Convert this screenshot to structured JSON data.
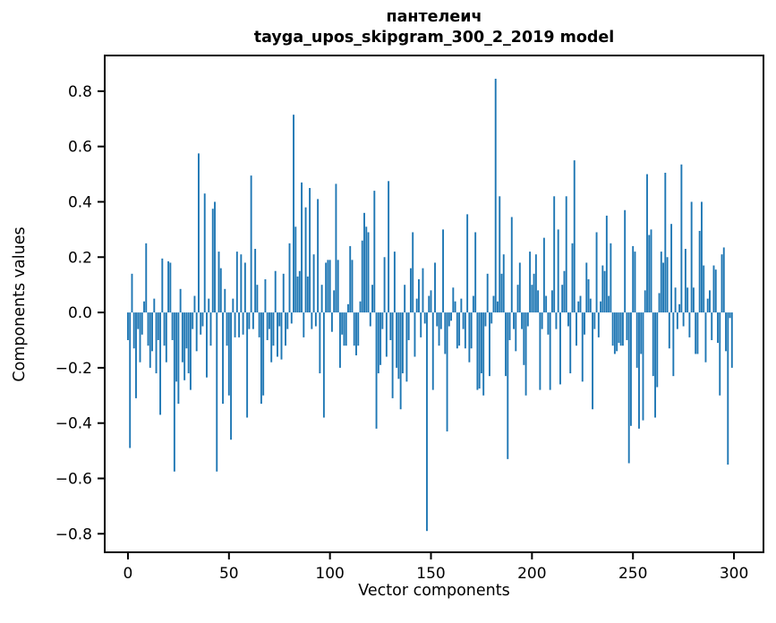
{
  "figure": {
    "title_line1": "пантелеич",
    "title_line2": "tayga_upos_skipgram_300_2_2019 model",
    "xlabel": "Vector components",
    "ylabel": "Components values"
  },
  "chart_data": {
    "type": "bar",
    "title": "пантелеич — tayga_upos_skipgram_300_2_2019 model",
    "xlabel": "Vector components",
    "ylabel": "Components values",
    "bar_color": "#1f77b4",
    "axis_color": "#000000",
    "background": "#ffffff",
    "grid": false,
    "legend": null,
    "n_components": 300,
    "x_start": 0,
    "xticks": [
      0,
      50,
      100,
      150,
      200,
      250,
      300
    ],
    "yticks": [
      0.8,
      0.6,
      0.4,
      0.2,
      0.0,
      -0.2,
      -0.4,
      -0.6,
      -0.8
    ],
    "xlim": [
      -11.5,
      314.6
    ],
    "ylim": [
      -0.867,
      0.929
    ],
    "values": [
      -0.1,
      -0.49,
      0.14,
      -0.13,
      -0.31,
      -0.06,
      -0.18,
      -0.08,
      0.04,
      0.25,
      -0.12,
      -0.2,
      -0.14,
      0.05,
      -0.22,
      -0.1,
      -0.37,
      0.195,
      -0.12,
      -0.18,
      0.185,
      0.18,
      -0.1,
      -0.575,
      -0.25,
      -0.33,
      0.085,
      -0.18,
      -0.245,
      -0.13,
      -0.22,
      -0.28,
      -0.06,
      0.06,
      -0.14,
      0.575,
      -0.08,
      -0.05,
      0.43,
      -0.235,
      0.05,
      -0.12,
      0.375,
      0.4,
      -0.575,
      0.22,
      0.16,
      -0.33,
      0.085,
      -0.12,
      -0.3,
      -0.46,
      0.05,
      -0.09,
      0.22,
      -0.09,
      0.21,
      -0.08,
      0.18,
      -0.38,
      -0.06,
      0.495,
      -0.06,
      0.23,
      0.1,
      -0.09,
      -0.33,
      -0.3,
      0.12,
      -0.1,
      -0.06,
      -0.18,
      -0.12,
      0.15,
      -0.16,
      -0.05,
      -0.17,
      0.14,
      -0.12,
      -0.06,
      0.25,
      -0.04,
      0.715,
      0.31,
      0.13,
      0.15,
      0.47,
      -0.09,
      0.38,
      0.13,
      0.45,
      -0.06,
      0.21,
      -0.05,
      0.41,
      -0.22,
      0.1,
      -0.38,
      0.18,
      0.19,
      0.19,
      -0.07,
      0.08,
      0.465,
      0.19,
      -0.2,
      -0.08,
      -0.12,
      -0.12,
      0.03,
      0.24,
      0.19,
      -0.12,
      -0.155,
      -0.12,
      0.04,
      0.26,
      0.36,
      0.31,
      0.29,
      -0.05,
      0.1,
      0.44,
      -0.42,
      -0.22,
      -0.19,
      -0.06,
      0.2,
      -0.16,
      0.475,
      -0.1,
      -0.31,
      0.22,
      -0.2,
      -0.24,
      -0.35,
      -0.22,
      0.1,
      -0.25,
      -0.1,
      0.16,
      0.29,
      -0.16,
      0.05,
      0.12,
      -0.09,
      0.16,
      -0.04,
      -0.79,
      0.06,
      0.08,
      -0.28,
      0.18,
      -0.05,
      -0.12,
      -0.06,
      0.3,
      -0.15,
      -0.43,
      -0.05,
      -0.03,
      0.09,
      0.04,
      -0.13,
      -0.12,
      0.05,
      -0.06,
      -0.13,
      0.355,
      -0.18,
      -0.13,
      0.06,
      0.29,
      -0.28,
      -0.275,
      -0.22,
      -0.3,
      -0.05,
      0.14,
      -0.23,
      -0.04,
      0.06,
      0.845,
      0.04,
      0.42,
      0.14,
      0.21,
      -0.23,
      -0.53,
      -0.1,
      0.345,
      -0.06,
      -0.14,
      0.1,
      0.18,
      -0.06,
      -0.19,
      -0.3,
      -0.05,
      0.22,
      0.1,
      0.14,
      0.21,
      0.08,
      -0.28,
      -0.06,
      0.27,
      0.06,
      -0.08,
      -0.28,
      0.08,
      0.42,
      -0.06,
      0.3,
      -0.26,
      0.1,
      0.15,
      0.42,
      -0.05,
      -0.22,
      0.25,
      0.55,
      -0.12,
      0.04,
      0.06,
      -0.25,
      -0.08,
      0.18,
      0.12,
      0.05,
      -0.35,
      -0.06,
      0.29,
      -0.09,
      0.04,
      0.17,
      0.15,
      0.35,
      0.06,
      0.25,
      -0.12,
      -0.15,
      -0.14,
      -0.11,
      -0.12,
      -0.12,
      0.37,
      -0.1,
      -0.545,
      -0.41,
      0.24,
      0.22,
      -0.2,
      -0.42,
      -0.15,
      -0.39,
      0.08,
      0.5,
      0.28,
      0.3,
      -0.23,
      -0.38,
      -0.27,
      0.07,
      0.22,
      0.18,
      0.505,
      0.2,
      -0.13,
      0.32,
      -0.23,
      0.09,
      -0.06,
      0.03,
      0.535,
      -0.05,
      0.23,
      0.09,
      -0.09,
      0.4,
      0.09,
      -0.15,
      -0.15,
      0.295,
      0.4,
      0.17,
      -0.18,
      0.05,
      0.08,
      -0.1,
      0.17,
      0.155,
      -0.11,
      -0.3,
      0.21,
      0.235,
      -0.14,
      -0.55,
      -0.02,
      -0.2
    ]
  }
}
